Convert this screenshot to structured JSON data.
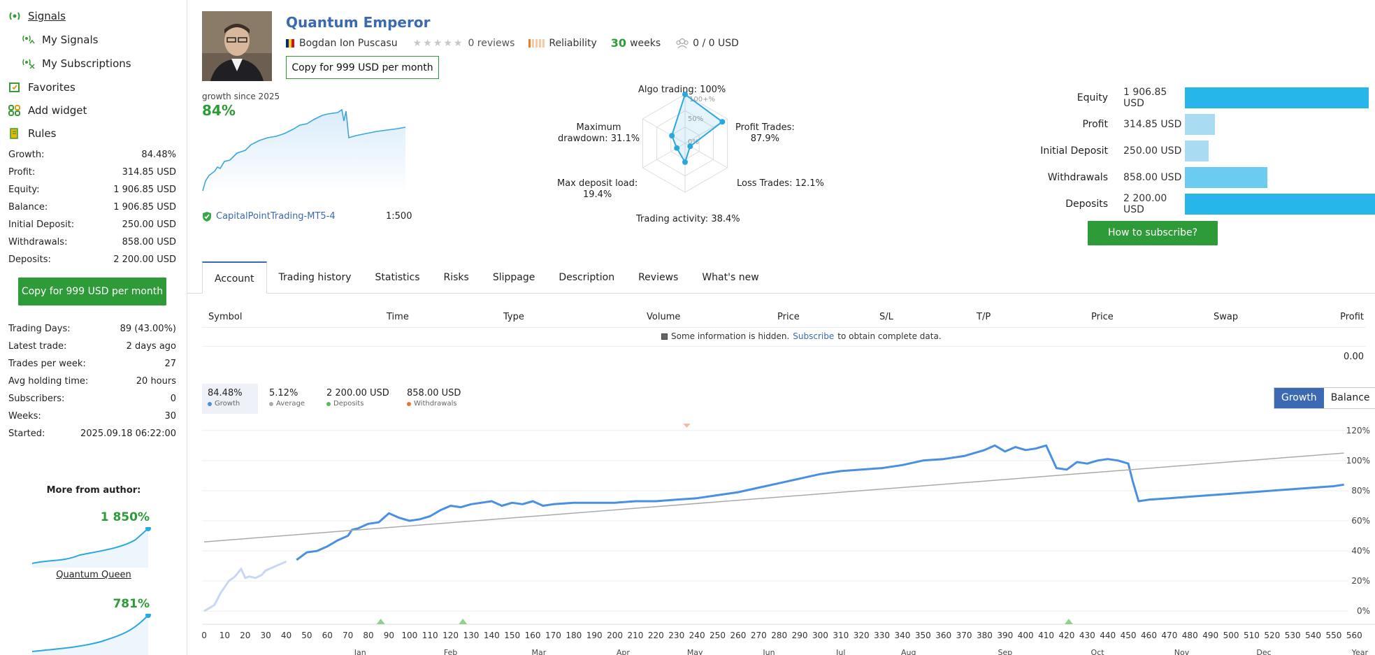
{
  "sidebar": {
    "nav": [
      {
        "label": "Signals",
        "icon": "signal-icon"
      },
      {
        "label": "My Signals",
        "icon": "my-signals-icon"
      },
      {
        "label": "My Subscriptions",
        "icon": "subscriptions-icon"
      },
      {
        "label": "Favorites",
        "icon": "favorites-icon"
      },
      {
        "label": "Add widget",
        "icon": "widget-icon"
      },
      {
        "label": "Rules",
        "icon": "rules-icon"
      }
    ],
    "stats": [
      {
        "label": "Growth:",
        "value": "84.48%"
      },
      {
        "label": "Profit:",
        "value": "314.85 USD"
      },
      {
        "label": "Equity:",
        "value": "1 906.85 USD"
      },
      {
        "label": "Balance:",
        "value": "1 906.85 USD"
      },
      {
        "label": "Initial Deposit:",
        "value": "250.00 USD"
      },
      {
        "label": "Withdrawals:",
        "value": "858.00 USD"
      },
      {
        "label": "Deposits:",
        "value": "2 200.00 USD"
      }
    ],
    "copy_button": "Copy for 999 USD per month",
    "stats2": [
      {
        "label": "Trading Days:",
        "value": "89 (43.00%)"
      },
      {
        "label": "Latest trade:",
        "value": "2 days ago"
      },
      {
        "label": "Trades per week:",
        "value": "27"
      },
      {
        "label": "Avg holding time:",
        "value": "20 hours"
      },
      {
        "label": "Subscribers:",
        "value": "0"
      },
      {
        "label": "Weeks:",
        "value": "30"
      },
      {
        "label": "Started:",
        "value": "2025.09.18 06:22:00"
      }
    ],
    "more_from_author": "More from author:",
    "author_signals": [
      {
        "growth": "1 850%",
        "name": "Quantum Queen"
      },
      {
        "growth": "781%",
        "name": ""
      }
    ]
  },
  "header": {
    "title": "Quantum Emperor",
    "author": "Bogdan Ion Puscasu",
    "reviews": "0 reviews",
    "reliability": "Reliability",
    "weeks_num": "30",
    "weeks_label": "weeks",
    "subscribers": "0 / 0 USD",
    "copy_button": "Copy for 999 USD per month",
    "stars": "★★★★★"
  },
  "mini_growth": {
    "caption": "growth since 2025",
    "value": "84%",
    "broker": "CapitalPointTrading-MT5-4",
    "leverage": "1:500"
  },
  "radar": {
    "labels": {
      "algo": "Algo trading: 100%",
      "profit": "Profit Trades:",
      "profit_val": "87.9%",
      "loss": "Loss Trades: 12.1%",
      "activity": "Trading activity: 38.4%",
      "deposit_load": "Max deposit load:",
      "deposit_load_val": "19.4%",
      "drawdown": "Maximum",
      "drawdown_val": "drawdown: 31.1%"
    },
    "scale": [
      "100+%",
      "50%",
      "0%"
    ],
    "values": {
      "algo": 1.0,
      "profit": 0.879,
      "loss": 0.121,
      "activity": 0.384,
      "deposit_load": 0.194,
      "drawdown": 0.311
    }
  },
  "summary_bars": [
    {
      "label": "Equity",
      "value": "1 906.85 USD",
      "amount": 1906.85,
      "color": "#26b6ea"
    },
    {
      "label": "Profit",
      "value": "314.85 USD",
      "amount": 314.85,
      "color": "#a9dcf3"
    },
    {
      "label": "Initial Deposit",
      "value": "250.00 USD",
      "amount": 250.0,
      "color": "#a9dcf3"
    },
    {
      "label": "Withdrawals",
      "value": "858.00 USD",
      "amount": 858.0,
      "color": "#6ccbf0"
    },
    {
      "label": "Deposits",
      "value": "2 200.00 USD",
      "amount": 2200.0,
      "color": "#26b6ea"
    }
  ],
  "how_to_subscribe": "How to subscribe?",
  "tabs": [
    "Account",
    "Trading history",
    "Statistics",
    "Risks",
    "Slippage",
    "Description",
    "Reviews",
    "What's new"
  ],
  "table": {
    "headers": [
      "Symbol",
      "Time",
      "Type",
      "Volume",
      "Price",
      "S/L",
      "T/P",
      "Price",
      "Swap",
      "Profit"
    ],
    "hidden_pre": "Some information is hidden.",
    "hidden_link": "Subscribe",
    "hidden_post": "to obtain complete data.",
    "total": "0.00"
  },
  "chart_stats": [
    {
      "value": "84.48%",
      "label": "Growth",
      "color": "#4a90e2"
    },
    {
      "value": "5.12%",
      "label": "Average",
      "color": "#aaaaaa"
    },
    {
      "value": "2 200.00 USD",
      "label": "Deposits",
      "color": "#5cb85c"
    },
    {
      "value": "858.00 USD",
      "label": "Withdrawals",
      "color": "#e8743b"
    }
  ],
  "toggle": {
    "growth": "Growth",
    "balance": "Balance"
  },
  "chart_data": {
    "type": "line",
    "y_ticks": [
      "0%",
      "20%",
      "40%",
      "60%",
      "80%",
      "100%",
      "120%"
    ],
    "ylim": [
      -5,
      125
    ],
    "x_ticks": [
      "0",
      "10",
      "20",
      "30",
      "40",
      "50",
      "60",
      "70",
      "80",
      "90",
      "100",
      "110",
      "120",
      "130",
      "140",
      "150",
      "160",
      "170",
      "180",
      "190",
      "200",
      "210",
      "220",
      "230",
      "240",
      "250",
      "260",
      "270",
      "280",
      "290",
      "300",
      "310",
      "320",
      "330",
      "340",
      "350",
      "360",
      "370",
      "380",
      "390",
      "400",
      "410",
      "420",
      "430",
      "440",
      "450",
      "460",
      "470",
      "480",
      "490",
      "500",
      "510",
      "520",
      "530",
      "540",
      "550",
      "560"
    ],
    "x_end_label": "Year",
    "xlim": [
      0,
      565
    ],
    "months": [
      {
        "label": "Jan",
        "x": 76
      },
      {
        "label": "Feb",
        "x": 120
      },
      {
        "label": "Mar",
        "x": 163
      },
      {
        "label": "Apr",
        "x": 204
      },
      {
        "label": "May",
        "x": 239
      },
      {
        "label": "Jun",
        "x": 275
      },
      {
        "label": "Jul",
        "x": 310
      },
      {
        "label": "Aug",
        "x": 343
      },
      {
        "label": "Sep",
        "x": 390
      },
      {
        "label": "Oct",
        "x": 435
      },
      {
        "label": "Nov",
        "x": 476
      },
      {
        "label": "Dec",
        "x": 516
      }
    ],
    "series": [
      {
        "name": "Growth",
        "color": "#4a90e2",
        "x": [
          0,
          5,
          8,
          12,
          15,
          18,
          20,
          22,
          25,
          28,
          30,
          35,
          40,
          45,
          50,
          55,
          60,
          65,
          70,
          72,
          75,
          80,
          85,
          90,
          95,
          100,
          105,
          110,
          115,
          120,
          125,
          130,
          135,
          140,
          145,
          150,
          155,
          160,
          165,
          170,
          180,
          190,
          200,
          210,
          220,
          230,
          240,
          250,
          260,
          270,
          280,
          290,
          300,
          310,
          320,
          330,
          340,
          350,
          360,
          370,
          380,
          385,
          390,
          395,
          400,
          405,
          410,
          412,
          415,
          420,
          425,
          430,
          435,
          440,
          445,
          450,
          452,
          455,
          460,
          470,
          480,
          490,
          500,
          510,
          520,
          530,
          540,
          550,
          555
        ],
        "y": [
          0,
          4,
          12,
          20,
          23,
          28,
          22,
          23,
          22,
          24,
          27,
          30,
          33,
          34,
          39,
          40,
          43,
          47,
          50,
          54,
          55,
          58,
          59,
          65,
          62,
          60,
          61,
          63,
          67,
          70,
          69,
          71,
          72,
          73,
          70,
          72,
          71,
          73,
          70,
          71,
          72,
          72,
          72,
          73,
          73,
          74,
          75,
          77,
          79,
          82,
          85,
          88,
          91,
          93,
          94,
          95,
          97,
          100,
          101,
          103,
          107,
          110,
          106,
          109,
          107,
          108,
          110,
          104,
          95,
          94,
          99,
          98,
          100,
          101,
          100,
          98,
          87,
          73,
          74,
          75,
          76,
          77,
          78,
          79,
          80,
          81,
          82,
          83,
          84
        ]
      },
      {
        "name": "Average",
        "color": "#aaaaaa",
        "x": [
          0,
          555
        ],
        "y": [
          46,
          105
        ]
      }
    ],
    "events": [
      {
        "type": "deposit",
        "x": 86
      },
      {
        "type": "deposit",
        "x": 126
      },
      {
        "type": "deposit",
        "x": 421
      },
      {
        "type": "withdrawal",
        "x": 235
      }
    ]
  }
}
